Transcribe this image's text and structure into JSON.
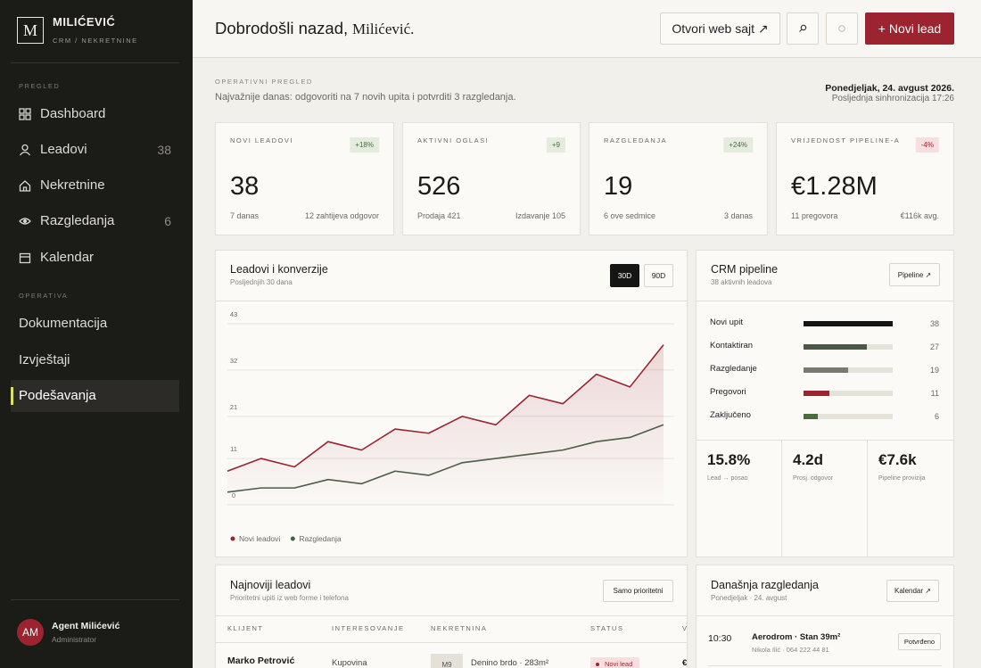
{
  "sidebar": {
    "logo": "M",
    "brand": "MILIĆEVIĆ",
    "tagline": "CRM / NEKRETNINE",
    "sections": [
      {
        "title": "PREGLED",
        "items": [
          {
            "label": "Dashboard"
          },
          {
            "label": "Leadovi",
            "count": 38
          },
          {
            "label": "Nekretnine"
          },
          {
            "label": "Razgledanja",
            "count": 6
          },
          {
            "label": "Kalendar"
          }
        ]
      },
      {
        "title": "OPERATIVA",
        "items": [
          {
            "label": "Dokumentacija"
          },
          {
            "label": "Izvještaji"
          },
          {
            "label": "Podešavanja",
            "active": true
          }
        ]
      }
    ],
    "user": {
      "initials": "AM",
      "name": "Agent Milićević",
      "role": "Administrator"
    }
  },
  "header": {
    "greeting": "Dobrodošli nazad,",
    "name": "Milićević.",
    "website": "Otvori web sajt ↗",
    "primary": "+ Novi lead"
  },
  "overview": {
    "label": "OPERATIVNI PREGLED",
    "summary": "Najvažnije danas: odgovoriti na 7 novih upita i potvrditi 3 razgledanja.",
    "date": "Ponedjeljak, 24. avgust 2026.",
    "sync": "Posljednja sinhronizacija 17:26"
  },
  "kpis": [
    {
      "label": "NOVI LEADOVI",
      "change": "+18%",
      "value": "38",
      "left": "7 danas",
      "right": "12 zahtijeva odgovor"
    },
    {
      "label": "AKTIVNI OGLASI",
      "change": "+9",
      "value": "526",
      "left": "Prodaja 421",
      "right": "Izdavanje 105"
    },
    {
      "label": "RAZGLEDANJA",
      "change": "+24%",
      "value": "19",
      "left": "6 ove sedmice",
      "right": "3 danas"
    },
    {
      "label": "VRIJEDNOST PIPELINE-A",
      "change": "-4%",
      "value": "€1.28M",
      "left": "11 pregovora",
      "right": "€116k avg."
    }
  ],
  "pipeline": {
    "title": "CRM pipeline",
    "subtitle": "38 aktivnih leadova",
    "button": "Pipeline ↗",
    "stages": [
      {
        "name": "Novi upit",
        "value": 38,
        "color": "#151513"
      },
      {
        "name": "Kontaktiran",
        "value": 27,
        "color": "#4b5846"
      },
      {
        "name": "Razgledanje",
        "value": 19,
        "color": "#767a6f"
      },
      {
        "name": "Pregovori",
        "value": 11,
        "color": "#9b2430"
      },
      {
        "name": "Zaključeno",
        "value": 6,
        "color": "#4a6a3f"
      }
    ],
    "stats": [
      {
        "value": "15.8%",
        "label": "Lead → posao"
      },
      {
        "value": "4.2d",
        "label": "Prosj. odgovor"
      },
      {
        "value": "€7.6k",
        "label": "Pipeline provizija"
      }
    ]
  },
  "leads": {
    "title": "Najnoviji leadovi",
    "subtitle": "Prioritetni upiti iz web forme i telefona",
    "filter": "Samo prioritetni",
    "columns": [
      "KLIJENT",
      "INTERESOVANJE",
      "NEKRETNINA",
      "STATUS",
      "V"
    ],
    "rows": [
      {
        "client": "Marko Petrović",
        "interest": "Kupovina",
        "thumb": "M9",
        "property": "Denino brdo · 283m²",
        "status": "Novi lead",
        "value": "€"
      }
    ]
  },
  "viewings": {
    "title": "Današnja razgledanja",
    "subtitle": "Ponedjeljak · 24. avgust",
    "button": "Kalendar ↗",
    "items": [
      {
        "time": "10:30",
        "title": "Aerodrom · Stan 39m²",
        "meta": "Nikola Ilić · 064 222 44 81",
        "status": "Potvrđeno"
      }
    ]
  },
  "chart_data": {
    "type": "line",
    "title": "Leadovi i konverzije",
    "subtitle": "Posljednjih 30 dana",
    "range_options": [
      "30D",
      "90D"
    ],
    "categories": [
      null,
      null,
      null,
      null,
      null,
      null,
      null,
      null,
      null,
      null,
      null,
      null,
      null,
      null
    ],
    "series": [
      {
        "name": "Novi leadovi",
        "color": "#9b2430",
        "values": [
          8,
          11,
          9,
          15,
          13,
          18,
          17,
          21,
          19,
          26,
          24,
          31,
          28,
          38
        ]
      },
      {
        "name": "Razgledanja",
        "color": "#4a5e45",
        "values": [
          3,
          4,
          4,
          6,
          5,
          8,
          7,
          10,
          11,
          12,
          13,
          15,
          16,
          19
        ]
      }
    ],
    "ylim": [
      0,
      43
    ],
    "yticks": [
      0,
      11,
      21,
      32,
      43
    ],
    "grid": true,
    "legend": "bottom-left"
  }
}
